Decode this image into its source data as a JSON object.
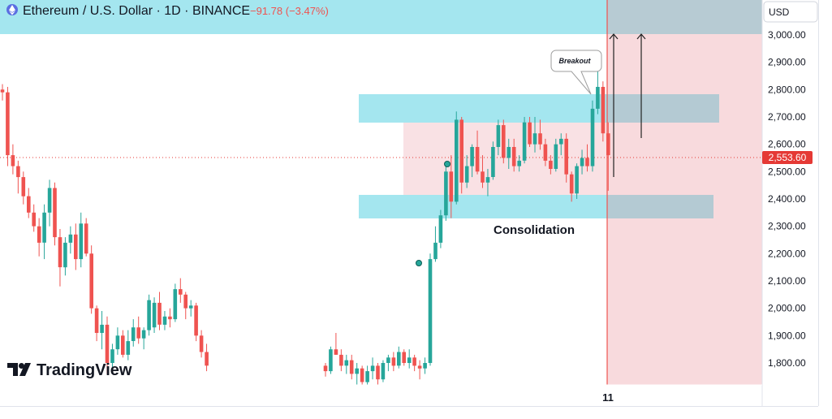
{
  "header": {
    "symbol_title": "Ethereum / U.S. Dollar · 1D · BINANCE",
    "change": "−91.78 (−3.47%)",
    "icon": "ethereum-icon"
  },
  "price_axis": {
    "currency": "USD",
    "ticks": [
      "3,000.00",
      "2,900.00",
      "2,800.00",
      "2,700.00",
      "2,600.00",
      "2,500.00",
      "2,400.00",
      "2,300.00",
      "2,200.00",
      "2,100.00",
      "2,000.00",
      "1,900.00",
      "1,800.00"
    ],
    "last_price_label": "2,553.60"
  },
  "time_axis": {
    "ticks": [
      "11"
    ]
  },
  "annotations": {
    "breakout": "Breakout",
    "consolidation": "Consolidation"
  },
  "branding": {
    "logo_text": "TradingView",
    "logo_icon": "tradingview-logo-icon"
  },
  "colors": {
    "up": "#26a69a",
    "down": "#ef5350",
    "zone_cyan": "#a4e6ef",
    "zone_pink": "#f8dadd",
    "last_price": "#e53935"
  },
  "chart_data": {
    "type": "candlestick",
    "title": "Ethereum / U.S. Dollar · 1D · BINANCE",
    "y_unit": "USD",
    "ylim": [
      1700,
      3130
    ],
    "grid": false,
    "last_price": 2553.6,
    "zones": [
      {
        "label": "",
        "low": 3000,
        "high": 3100
      },
      {
        "label": "",
        "low": 2680,
        "high": 2780
      },
      {
        "label": "Consolidation",
        "low": 2410,
        "high": 2680
      },
      {
        "label": "",
        "low": 2330,
        "high": 2415
      }
    ],
    "candles": [
      [
        2800,
        2820,
        2760,
        2790
      ],
      [
        2790,
        2810,
        2520,
        2560
      ],
      [
        2560,
        2600,
        2490,
        2520
      ],
      [
        2520,
        2540,
        2420,
        2480
      ],
      [
        2480,
        2500,
        2380,
        2410
      ],
      [
        2410,
        2440,
        2330,
        2350
      ],
      [
        2350,
        2380,
        2280,
        2300
      ],
      [
        2300,
        2330,
        2190,
        2240
      ],
      [
        2240,
        2380,
        2180,
        2350
      ],
      [
        2350,
        2470,
        2300,
        2440
      ],
      [
        2440,
        2460,
        2230,
        2260
      ],
      [
        2260,
        2290,
        2080,
        2150
      ],
      [
        2150,
        2260,
        2120,
        2240
      ],
      [
        2240,
        2300,
        2200,
        2270
      ],
      [
        2270,
        2310,
        2140,
        2180
      ],
      [
        2180,
        2350,
        2150,
        2310
      ],
      [
        2310,
        2330,
        2190,
        2200
      ],
      [
        2200,
        2230,
        1980,
        2000
      ],
      [
        2000,
        2010,
        1880,
        1910
      ],
      [
        1910,
        1990,
        1850,
        1940
      ],
      [
        1940,
        1970,
        1760,
        1800
      ],
      [
        1800,
        1870,
        1780,
        1850
      ],
      [
        1850,
        1930,
        1830,
        1900
      ],
      [
        1900,
        1920,
        1820,
        1830
      ],
      [
        1830,
        1920,
        1810,
        1880
      ],
      [
        1880,
        1960,
        1860,
        1930
      ],
      [
        1930,
        1970,
        1870,
        1890
      ],
      [
        1890,
        1930,
        1850,
        1920
      ],
      [
        1920,
        2050,
        1900,
        2030
      ],
      [
        1930,
        2040,
        1910,
        2020
      ],
      [
        2020,
        2060,
        1920,
        1940
      ],
      [
        1940,
        1990,
        1920,
        1970
      ],
      [
        1970,
        2000,
        1930,
        1960
      ],
      [
        1960,
        2090,
        1950,
        2070
      ],
      [
        2070,
        2110,
        2020,
        2050
      ],
      [
        2050,
        2060,
        1960,
        2000
      ],
      [
        2000,
        2030,
        1970,
        2010
      ],
      [
        2010,
        2020,
        1880,
        1900
      ],
      [
        1900,
        1920,
        1820,
        1840
      ],
      [
        1840,
        1870,
        1770,
        1790
      ],
      [
        1790,
        1800,
        1750,
        1770
      ],
      [
        1770,
        1860,
        1760,
        1850
      ],
      [
        1850,
        1910,
        1830,
        1830
      ],
      [
        1830,
        1850,
        1770,
        1790
      ],
      [
        1790,
        1830,
        1760,
        1810
      ],
      [
        1810,
        1830,
        1740,
        1760
      ],
      [
        1760,
        1800,
        1720,
        1780
      ],
      [
        1780,
        1790,
        1720,
        1730
      ],
      [
        1730,
        1790,
        1720,
        1770
      ],
      [
        1770,
        1820,
        1740,
        1790
      ],
      [
        1790,
        1800,
        1720,
        1740
      ],
      [
        1740,
        1810,
        1730,
        1800
      ],
      [
        1800,
        1830,
        1770,
        1820
      ],
      [
        1820,
        1840,
        1770,
        1790
      ],
      [
        1790,
        1860,
        1780,
        1840
      ],
      [
        1840,
        1850,
        1790,
        1800
      ],
      [
        1800,
        1850,
        1780,
        1820
      ],
      [
        1820,
        1830,
        1770,
        1790
      ],
      [
        1790,
        1810,
        1740,
        1780
      ],
      [
        1780,
        1820,
        1760,
        1800
      ],
      [
        1800,
        2200,
        1790,
        2180
      ],
      [
        2180,
        2300,
        2170,
        2240
      ],
      [
        2240,
        2360,
        2220,
        2340
      ],
      [
        2340,
        2520,
        2320,
        2500
      ],
      [
        2500,
        2560,
        2330,
        2390
      ],
      [
        2390,
        2720,
        2380,
        2690
      ],
      [
        2690,
        2700,
        2420,
        2460
      ],
      [
        2460,
        2560,
        2440,
        2520
      ],
      [
        2520,
        2600,
        2480,
        2590
      ],
      [
        2590,
        2650,
        2490,
        2500
      ],
      [
        2500,
        2560,
        2440,
        2460
      ],
      [
        2460,
        2510,
        2410,
        2480
      ],
      [
        2480,
        2610,
        2470,
        2590
      ],
      [
        2590,
        2690,
        2560,
        2670
      ],
      [
        2670,
        2690,
        2530,
        2550
      ],
      [
        2550,
        2620,
        2510,
        2590
      ],
      [
        2590,
        2620,
        2500,
        2520
      ],
      [
        2520,
        2560,
        2500,
        2540
      ],
      [
        2540,
        2700,
        2530,
        2680
      ],
      [
        2680,
        2700,
        2590,
        2600
      ],
      [
        2600,
        2700,
        2570,
        2640
      ],
      [
        2640,
        2690,
        2580,
        2600
      ],
      [
        2600,
        2620,
        2520,
        2540
      ],
      [
        2540,
        2560,
        2490,
        2510
      ],
      [
        2510,
        2620,
        2500,
        2600
      ],
      [
        2600,
        2640,
        2560,
        2620
      ],
      [
        2620,
        2640,
        2460,
        2490
      ],
      [
        2490,
        2500,
        2390,
        2420
      ],
      [
        2420,
        2530,
        2400,
        2520
      ],
      [
        2520,
        2580,
        2490,
        2550
      ],
      [
        2550,
        2600,
        2500,
        2520
      ],
      [
        2520,
        2760,
        2500,
        2730
      ],
      [
        2730,
        2870,
        2710,
        2810
      ],
      [
        2810,
        2830,
        2610,
        2640
      ],
      [
        2640,
        2680,
        2430,
        2560
      ]
    ]
  }
}
